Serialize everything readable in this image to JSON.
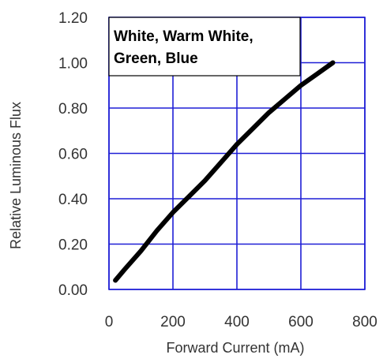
{
  "chart_data": {
    "type": "line",
    "title": "",
    "xlabel": "Forward Current (mA)",
    "ylabel": "Relative Luminous Flux",
    "xlim": [
      0,
      800
    ],
    "ylim": [
      0,
      1.2
    ],
    "x_ticks": [
      "0",
      "200",
      "400",
      "600",
      "800"
    ],
    "y_ticks": [
      "0.00",
      "0.20",
      "0.40",
      "0.60",
      "0.80",
      "1.00",
      "1.20"
    ],
    "grid": true,
    "legend_box": {
      "line1": "White, Warm White,",
      "line2": "Green, Blue"
    },
    "series": [
      {
        "x": [
          20,
          50,
          100,
          150,
          200,
          250,
          300,
          350,
          400,
          450,
          500,
          550,
          600,
          650,
          700
        ],
        "y": [
          0.04,
          0.09,
          0.17,
          0.26,
          0.34,
          0.41,
          0.48,
          0.56,
          0.64,
          0.71,
          0.78,
          0.84,
          0.9,
          0.95,
          1.0
        ]
      }
    ],
    "colors": {
      "grid": "#1f1fd6",
      "plot_border": "#1f1fd6",
      "line": "#000000",
      "text": "#333333"
    }
  }
}
